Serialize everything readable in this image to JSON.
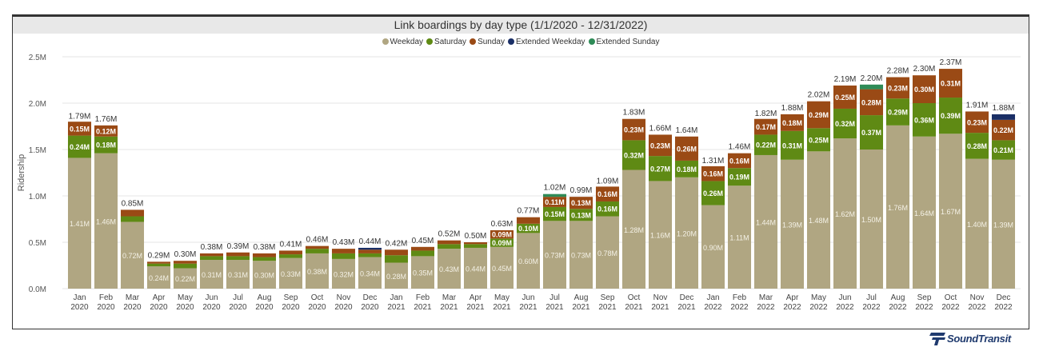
{
  "chart_data": {
    "type": "bar",
    "stacked": true,
    "title": "Link boardings by day type (1/1/2020 - 12/31/2022)",
    "xlabel": "",
    "ylabel": "Ridership",
    "ylim": [
      0,
      2.5
    ],
    "yticks": [
      "0.0M",
      "0.5M",
      "1.0M",
      "1.5M",
      "2.0M",
      "2.5M"
    ],
    "ytick_values": [
      0,
      0.5,
      1.0,
      1.5,
      2.0,
      2.5
    ],
    "grid": true,
    "legend_position": "top-center",
    "categories": [
      "Jan 2020",
      "Feb 2020",
      "Mar 2020",
      "Apr 2020",
      "May 2020",
      "Jun 2020",
      "Jul 2020",
      "Aug 2020",
      "Sep 2020",
      "Oct 2020",
      "Nov 2020",
      "Dec 2020",
      "Jan 2021",
      "Feb 2021",
      "Mar 2021",
      "Apr 2021",
      "May 2021",
      "Jun 2021",
      "Jul 2021",
      "Aug 2021",
      "Sep 2021",
      "Oct 2021",
      "Nov 2021",
      "Dec 2021",
      "Jan 2022",
      "Feb 2022",
      "Mar 2022",
      "Apr 2022",
      "May 2022",
      "Jun 2022",
      "Jul 2022",
      "Aug 2022",
      "Sep 2022",
      "Oct 2022",
      "Nov 2022",
      "Dec 2022"
    ],
    "series": [
      {
        "name": "Weekday",
        "color": "#b0a682",
        "values": [
          1.41,
          1.46,
          0.72,
          0.24,
          0.22,
          0.31,
          0.31,
          0.3,
          0.33,
          0.38,
          0.32,
          0.34,
          0.28,
          0.35,
          0.43,
          0.44,
          0.45,
          0.6,
          0.73,
          0.73,
          0.78,
          1.28,
          1.16,
          1.2,
          0.9,
          1.11,
          1.44,
          1.39,
          1.48,
          1.62,
          1.5,
          1.76,
          1.64,
          1.67,
          1.4,
          1.39
        ],
        "labels": [
          "1.41M",
          "1.46M",
          "0.72M",
          "0.24M",
          "0.22M",
          "0.31M",
          "0.31M",
          "0.30M",
          "0.33M",
          "0.38M",
          "0.32M",
          "0.34M",
          "0.28M",
          "0.35M",
          "0.43M",
          "0.44M",
          "0.45M",
          "0.60M",
          "0.73M",
          "0.73M",
          "0.78M",
          "1.28M",
          "1.16M",
          "1.20M",
          "0.90M",
          "1.11M",
          "1.44M",
          "1.39M",
          "1.48M",
          "1.62M",
          "1.50M",
          "1.76M",
          "1.64M",
          "1.67M",
          "1.40M",
          "1.39M"
        ]
      },
      {
        "name": "Saturday",
        "color": "#5f8a14",
        "values": [
          0.24,
          0.18,
          0.06,
          0.03,
          0.05,
          0.04,
          0.04,
          0.04,
          0.04,
          0.05,
          0.06,
          0.04,
          0.08,
          0.06,
          0.05,
          0.04,
          0.09,
          0.1,
          0.15,
          0.13,
          0.16,
          0.32,
          0.27,
          0.18,
          0.26,
          0.19,
          0.22,
          0.31,
          0.25,
          0.32,
          0.37,
          0.29,
          0.36,
          0.39,
          0.28,
          0.21
        ],
        "labels": [
          "0.24M",
          "0.18M",
          "",
          "",
          "",
          "",
          "",
          "",
          "",
          "",
          "",
          "",
          "",
          "",
          "",
          "",
          "0.09M",
          "0.10M",
          "0.15M",
          "0.13M",
          "0.16M",
          "0.32M",
          "0.27M",
          "0.18M",
          "0.26M",
          "0.19M",
          "0.22M",
          "0.31M",
          "0.25M",
          "0.32M",
          "0.37M",
          "0.29M",
          "0.36M",
          "0.39M",
          "0.28M",
          "0.21M"
        ]
      },
      {
        "name": "Sunday",
        "color": "#9a4a15",
        "values": [
          0.15,
          0.12,
          0.07,
          0.02,
          0.03,
          0.03,
          0.04,
          0.04,
          0.04,
          0.03,
          0.05,
          0.04,
          0.06,
          0.04,
          0.04,
          0.02,
          0.09,
          0.07,
          0.11,
          0.13,
          0.16,
          0.23,
          0.23,
          0.26,
          0.16,
          0.16,
          0.17,
          0.18,
          0.29,
          0.25,
          0.28,
          0.23,
          0.3,
          0.31,
          0.23,
          0.22
        ],
        "labels": [
          "0.15M",
          "0.12M",
          "",
          "",
          "",
          "",
          "",
          "",
          "",
          "",
          "",
          "",
          "",
          "",
          "",
          "",
          "0.09M",
          "",
          "0.11M",
          "0.13M",
          "0.16M",
          "0.23M",
          "0.23M",
          "0.26M",
          "0.16M",
          "0.16M",
          "0.17M",
          "0.18M",
          "0.29M",
          "0.25M",
          "0.28M",
          "0.23M",
          "0.30M",
          "0.31M",
          "0.23M",
          "0.22M"
        ]
      },
      {
        "name": "Extended Weekday",
        "color": "#1a2f66",
        "values": [
          0,
          0,
          0,
          0,
          0,
          0,
          0,
          0,
          0,
          0,
          0,
          0.02,
          0,
          0,
          0,
          0,
          0,
          0,
          0,
          0,
          0,
          0,
          0,
          0,
          0,
          0,
          0,
          0,
          0,
          0,
          0,
          0,
          0,
          0,
          0,
          0.06
        ],
        "labels": [
          "",
          "",
          "",
          "",
          "",
          "",
          "",
          "",
          "",
          "",
          "",
          "",
          "",
          "",
          "",
          "",
          "",
          "",
          "",
          "",
          "",
          "",
          "",
          "",
          "",
          "",
          "",
          "",
          "",
          "",
          "",
          "",
          "",
          "",
          "",
          ""
        ]
      },
      {
        "name": "Extended Sunday",
        "color": "#2e8b57",
        "values": [
          0,
          0,
          0,
          0,
          0,
          0,
          0,
          0,
          0,
          0,
          0,
          0,
          0,
          0,
          0,
          0,
          0,
          0,
          0.03,
          0,
          0,
          0,
          0,
          0,
          0,
          0,
          0,
          0,
          0,
          0,
          0.05,
          0,
          0,
          0,
          0,
          0
        ],
        "labels": [
          "",
          "",
          "",
          "",
          "",
          "",
          "",
          "",
          "",
          "",
          "",
          "",
          "",
          "",
          "",
          "",
          "",
          "",
          "",
          "",
          "",
          "",
          "",
          "",
          "",
          "",
          "",
          "",
          "",
          "",
          "",
          "",
          "",
          "",
          "",
          ""
        ]
      }
    ],
    "totals": [
      1.79,
      1.76,
      0.85,
      0.29,
      0.3,
      0.38,
      0.39,
      0.38,
      0.41,
      0.46,
      0.43,
      0.44,
      0.42,
      0.45,
      0.52,
      0.5,
      0.63,
      0.77,
      1.02,
      0.99,
      1.09,
      1.83,
      1.66,
      1.64,
      1.31,
      1.46,
      1.82,
      1.88,
      2.02,
      2.19,
      2.2,
      2.28,
      2.3,
      2.37,
      1.91,
      1.88
    ],
    "total_labels": [
      "1.79M",
      "1.76M",
      "0.85M",
      "0.29M",
      "0.30M",
      "0.38M",
      "0.39M",
      "0.38M",
      "0.41M",
      "0.46M",
      "0.43M",
      "0.44M",
      "0.42M",
      "0.45M",
      "0.52M",
      "0.50M",
      "0.63M",
      "0.77M",
      "1.02M",
      "0.99M",
      "1.09M",
      "1.83M",
      "1.66M",
      "1.64M",
      "1.31M",
      "1.46M",
      "1.82M",
      "1.88M",
      "2.02M",
      "2.19M",
      "2.20M",
      "2.28M",
      "2.30M",
      "2.37M",
      "1.91M",
      "1.88M"
    ]
  },
  "branding": {
    "logo_text": "SoundTransit"
  }
}
